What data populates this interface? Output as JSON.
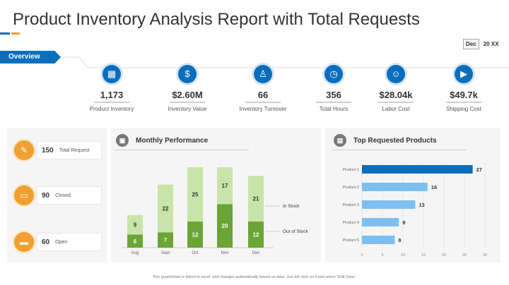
{
  "title": "Product Inventory Analysis Report with Total Requests",
  "date": {
    "month": "Dec",
    "year": "20 XX"
  },
  "overview_label": "Overview",
  "kpis": [
    {
      "value": "1,173",
      "label": "Product Inventory",
      "icon": "box-icon"
    },
    {
      "value": "$2.60M",
      "label": "Inventory  Value",
      "icon": "money-hand-icon"
    },
    {
      "value": "66",
      "label": "Inventory  Turnover",
      "icon": "worker-icon"
    },
    {
      "value": "356",
      "label": "Total Hours",
      "icon": "clock-icon"
    },
    {
      "value": "$28.04k",
      "label": "Labor Cost",
      "icon": "user-cost-icon"
    },
    {
      "value": "$49.7k",
      "label": "Shipping Cost",
      "icon": "truck-icon"
    }
  ],
  "requests": [
    {
      "value": "150",
      "label": "Total Request",
      "icon": "request-icon"
    },
    {
      "value": "90",
      "label": "Closed",
      "icon": "closed-box-icon"
    },
    {
      "value": "60",
      "label": "Open",
      "icon": "open-box-icon"
    }
  ],
  "colors": {
    "primary": "#0a6ebd",
    "accent": "#f0a030",
    "out_of_stock": "#6aa535",
    "in_stock": "#c9e4a8",
    "bar_highlight": "#0a6ebd",
    "bar_default": "#7dbff0"
  },
  "chart_data": [
    {
      "type": "bar",
      "stacked": true,
      "title": "Monthly Performance",
      "categories": [
        "Aug",
        "Sept",
        "Oct",
        "Nov",
        "Dec"
      ],
      "series": [
        {
          "name": "Out of Stock",
          "values": [
            6,
            7,
            12,
            20,
            12
          ]
        },
        {
          "name": "In Stock",
          "values": [
            9,
            22,
            25,
            17,
            21
          ]
        }
      ],
      "legend": "right",
      "grid": false
    },
    {
      "type": "bar",
      "orientation": "horizontal",
      "title": "Top Requested Products",
      "categories": [
        "Product 1",
        "Product 2",
        "Product 3",
        "Product 4",
        "Product 5"
      ],
      "values": [
        27,
        16,
        13,
        9,
        8
      ],
      "xticks": [
        "0",
        "5",
        "10",
        "15",
        "20",
        "25",
        "30"
      ],
      "xlim": [
        0,
        30
      ],
      "grid": true
    }
  ],
  "footnote": "This graph/chart is linked to excel, and changes automatically based on data. Just left click on it and select \"Edit Data\"."
}
